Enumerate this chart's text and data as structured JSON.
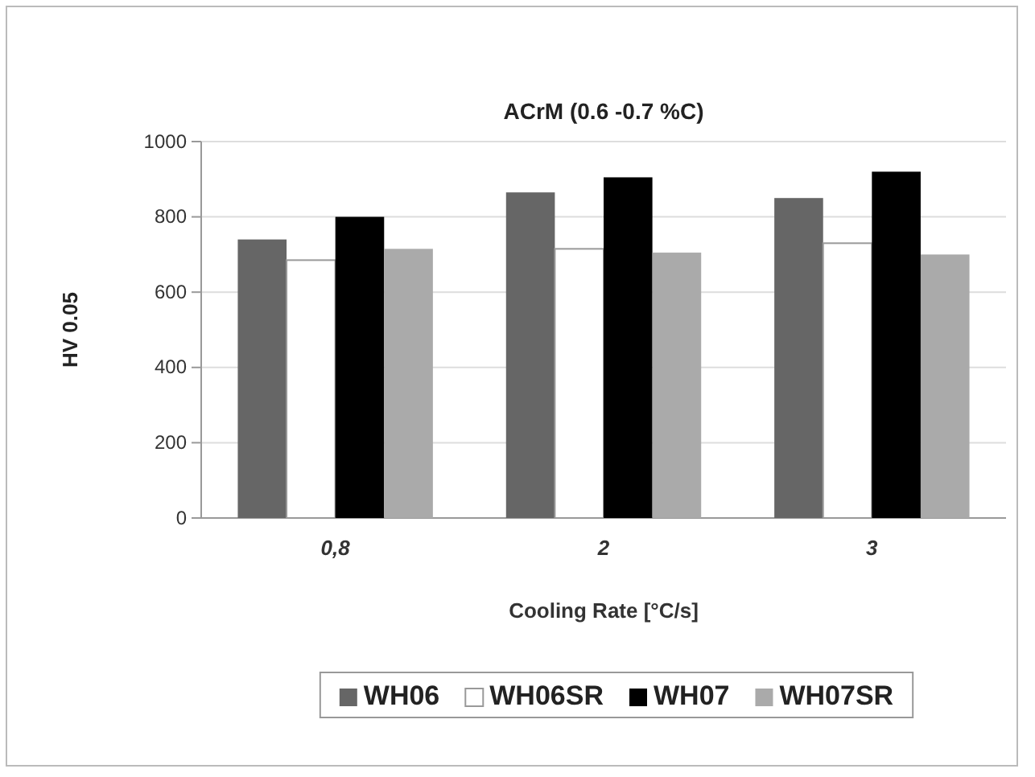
{
  "chart_data": {
    "type": "bar",
    "title": "ACrM (0.6 -0.7 %C)",
    "xlabel": "Cooling Rate [°C/s]",
    "ylabel": "HV 0.05",
    "categories": [
      "0,8",
      "2",
      "3"
    ],
    "series": [
      {
        "name": "WH06",
        "color": "#666666",
        "values": [
          740,
          865,
          850
        ]
      },
      {
        "name": "WH06SR",
        "color": "#ffffff",
        "values": [
          685,
          715,
          730
        ]
      },
      {
        "name": "WH07",
        "color": "#000000",
        "values": [
          800,
          905,
          920
        ]
      },
      {
        "name": "WH07SR",
        "color": "#aaaaaa",
        "values": [
          715,
          705,
          700
        ]
      }
    ],
    "ylim": [
      0,
      1000
    ],
    "yticks": [
      0,
      200,
      400,
      600,
      800,
      1000
    ],
    "grid": "y",
    "legend": "bottom"
  }
}
